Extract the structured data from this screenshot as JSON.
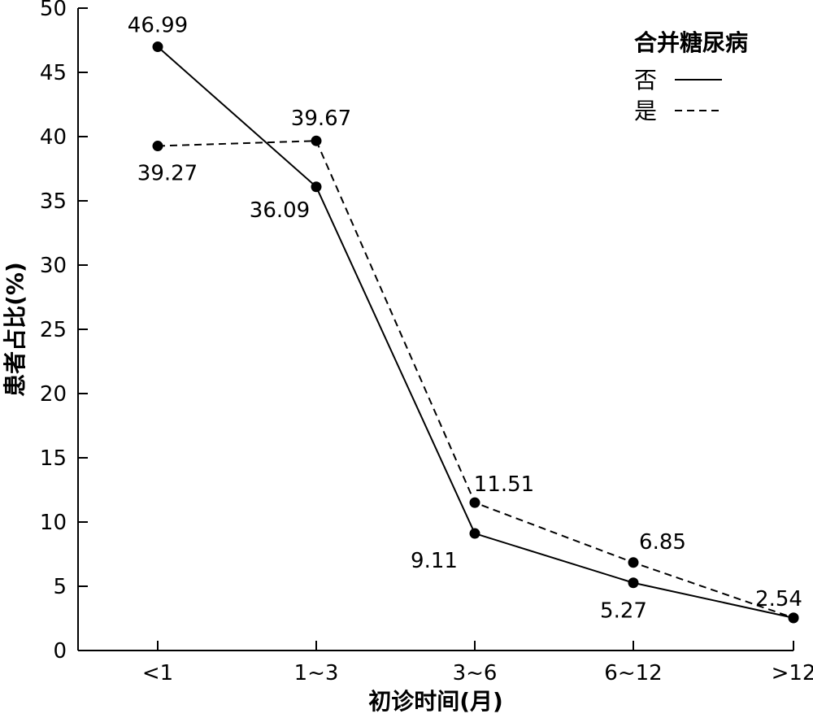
{
  "chart_data": {
    "type": "line",
    "title": "",
    "xlabel": "初诊时间(月)",
    "ylabel": "患者占比(%)",
    "categories": [
      "<1",
      "1~3",
      "3~6",
      "6~12",
      ">12"
    ],
    "ylim": [
      0,
      50
    ],
    "yticks": [
      0,
      5,
      10,
      15,
      20,
      25,
      30,
      35,
      40,
      45,
      50
    ],
    "grid": false,
    "legend": {
      "title": "合并糖尿病",
      "position": "top-right"
    },
    "series": [
      {
        "name": "否",
        "line_style": "solid",
        "values": [
          46.99,
          36.09,
          9.11,
          5.27,
          2.54
        ],
        "data_labels": [
          "46.99",
          "36.09",
          "9.11",
          "5.27",
          "2.54"
        ]
      },
      {
        "name": "是",
        "line_style": "dashed",
        "values": [
          39.27,
          39.67,
          11.51,
          6.85,
          2.54
        ],
        "data_labels": [
          "39.27",
          "39.67",
          "11.51",
          "6.85",
          ""
        ]
      }
    ],
    "colors": {
      "line": "#000000",
      "marker": "#000000"
    }
  }
}
